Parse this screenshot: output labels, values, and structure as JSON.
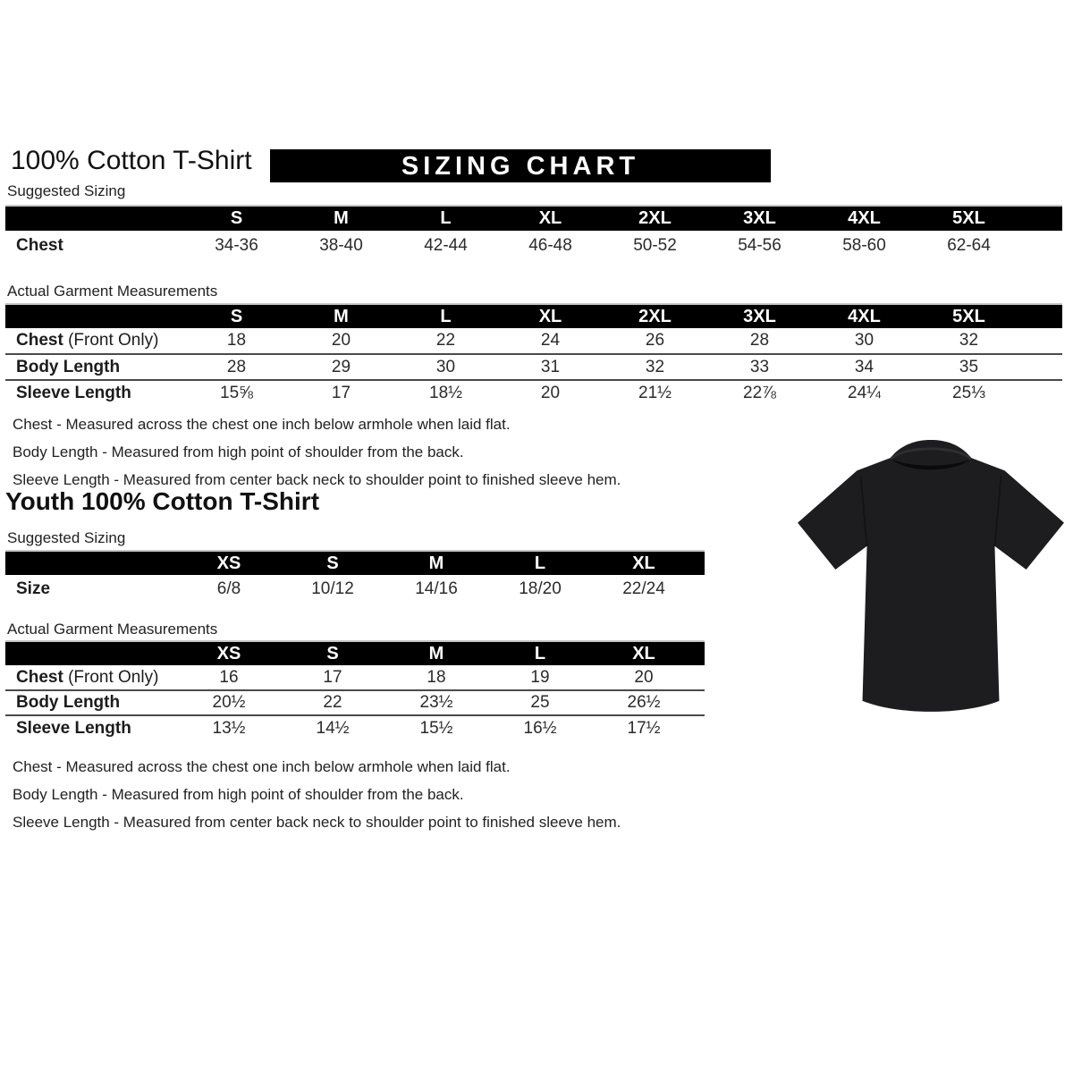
{
  "page": {
    "title": "100% Cotton T-Shirt",
    "banner": "SIZING CHART"
  },
  "adult": {
    "suggested_label": "Suggested Sizing",
    "actual_label": "Actual Garment Measurements",
    "suggested": {
      "columns": [
        "S",
        "M",
        "L",
        "XL",
        "2XL",
        "3XL",
        "4XL",
        "5XL"
      ],
      "rows": [
        {
          "label": "Chest",
          "suffix": "",
          "values": [
            "34-36",
            "38-40",
            "42-44",
            "46-48",
            "50-52",
            "54-56",
            "58-60",
            "62-64"
          ]
        }
      ]
    },
    "actual": {
      "columns": [
        "S",
        "M",
        "L",
        "XL",
        "2XL",
        "3XL",
        "4XL",
        "5XL"
      ],
      "rows": [
        {
          "label": "Chest",
          "suffix": " (Front Only)",
          "values": [
            "18",
            "20",
            "22",
            "24",
            "26",
            "28",
            "30",
            "32"
          ]
        },
        {
          "label": "Body Length",
          "suffix": "",
          "values": [
            "28",
            "29",
            "30",
            "31",
            "32",
            "33",
            "34",
            "35"
          ]
        },
        {
          "label": "Sleeve Length",
          "suffix": "",
          "values": [
            "15⅝",
            "17",
            "18½",
            "20",
            "21½",
            "22⅞",
            "24¼",
            "25⅓"
          ]
        }
      ]
    },
    "notes": [
      "Chest - Measured across the chest one inch below armhole when laid flat.",
      "Body Length - Measured from high point of shoulder from the back.",
      "Sleeve Length - Measured from center back neck to shoulder point to finished sleeve hem."
    ]
  },
  "youth": {
    "title": "Youth 100% Cotton T-Shirt",
    "suggested_label": "Suggested Sizing",
    "actual_label": "Actual Garment Measurements",
    "suggested": {
      "columns": [
        "XS",
        "S",
        "M",
        "L",
        "XL"
      ],
      "rows": [
        {
          "label": "Size",
          "suffix": "",
          "values": [
            "6/8",
            "10/12",
            "14/16",
            "18/20",
            "22/24"
          ]
        }
      ]
    },
    "actual": {
      "columns": [
        "XS",
        "S",
        "M",
        "L",
        "XL"
      ],
      "rows": [
        {
          "label": "Chest",
          "suffix": " (Front Only)",
          "values": [
            "16",
            "17",
            "18",
            "19",
            "20"
          ]
        },
        {
          "label": "Body Length",
          "suffix": "",
          "values": [
            "20½",
            "22",
            "23½",
            "25",
            "26½"
          ]
        },
        {
          "label": "Sleeve Length",
          "suffix": "",
          "values": [
            "13½",
            "14½",
            "15½",
            "16½",
            "17½"
          ]
        }
      ]
    },
    "notes": [
      "Chest - Measured across the chest one inch below armhole when laid flat.",
      "Body Length - Measured from high point of shoulder from the back.",
      "Sleeve Length - Measured from center back neck to shoulder point to finished sleeve hem."
    ]
  },
  "image": {
    "tshirt_label": "black-short-sleeve-tshirt",
    "colors": {
      "banner_bg": "#000000",
      "banner_text": "#ffffff",
      "shirt": "#1d1d1f",
      "shirt_shadow": "#0a0a0a",
      "rule": "#4a4a4a"
    }
  }
}
